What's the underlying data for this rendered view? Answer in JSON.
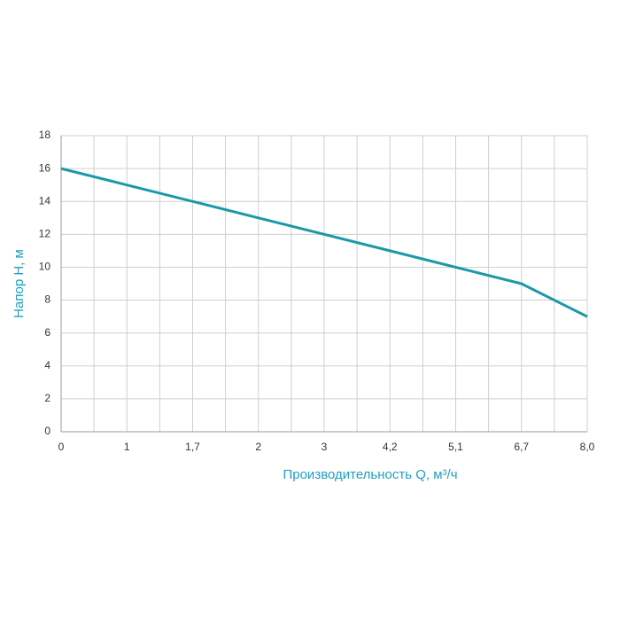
{
  "chart_data": {
    "type": "line",
    "x_label": "Производительность Q, м³/ч",
    "y_label": "Напор H, м",
    "categories": [
      "0",
      "1",
      "1,7",
      "2",
      "3",
      "4,2",
      "5,1",
      "6,7",
      "8,0"
    ],
    "series": [
      {
        "name": "Напор",
        "color": "#1b9aa6",
        "values": [
          16,
          15,
          14,
          13,
          12,
          11,
          10,
          9,
          7
        ]
      }
    ],
    "ylim": [
      0,
      18
    ],
    "yticks": [
      0,
      2,
      4,
      6,
      8,
      10,
      12,
      14,
      16,
      18
    ],
    "grid": true,
    "label_color": "#1f9fbf"
  }
}
